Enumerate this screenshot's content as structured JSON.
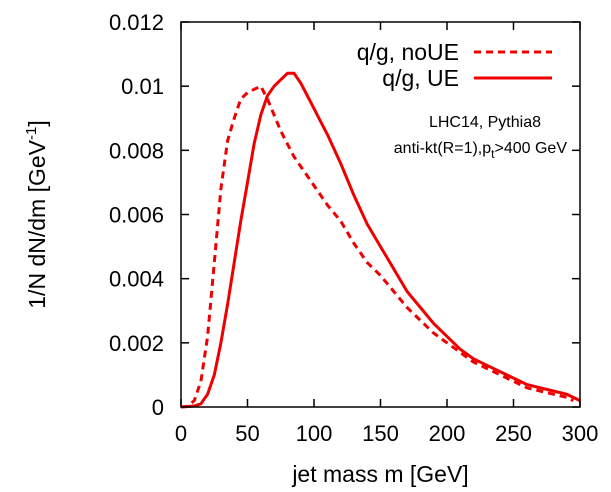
{
  "chart_data": {
    "type": "line",
    "xlabel": "jet mass m [GeV]",
    "ylabel": {
      "base": "1/N dN/dm [GeV",
      "superscript": "-1",
      "close": "]"
    },
    "xlim": [
      0,
      300
    ],
    "ylim": [
      0,
      0.012
    ],
    "xticks": [
      0,
      50,
      100,
      150,
      200,
      250,
      300
    ],
    "xtick_labels": [
      "0",
      "50",
      "100",
      "150",
      "200",
      "250",
      "300"
    ],
    "yticks": [
      0,
      0.002,
      0.004,
      0.006,
      0.008,
      0.01,
      0.012
    ],
    "ytick_labels": [
      "0",
      "0.002",
      "0.004",
      "0.006",
      "0.008",
      "0.01",
      "0.012"
    ],
    "grid": false,
    "legend_position": "top-right",
    "annotations": {
      "line1": "LHC14, Pythia8",
      "line2_prefix": "anti-kt(R=1),p",
      "line2_sub": "t",
      "line2_suffix": ">400 GeV"
    },
    "series": [
      {
        "name": "q/g, noUE",
        "color": "#ee0000",
        "style": "dashed",
        "x": [
          0,
          5,
          10,
          15,
          20,
          25,
          30,
          35,
          40,
          45,
          50,
          55,
          60,
          65,
          70,
          75,
          80,
          85,
          90,
          95,
          100,
          110,
          120,
          130,
          140,
          150,
          160,
          170,
          180,
          190,
          200,
          210,
          220,
          230,
          240,
          250,
          260,
          270,
          280,
          290,
          295
        ],
        "y": [
          0,
          2e-05,
          0.0002,
          0.0008,
          0.0022,
          0.0045,
          0.0068,
          0.0083,
          0.009,
          0.0096,
          0.0098,
          0.0099,
          0.01,
          0.0096,
          0.0091,
          0.0086,
          0.0082,
          0.0078,
          0.0075,
          0.0072,
          0.0069,
          0.0063,
          0.0058,
          0.0051,
          0.0045,
          0.0041,
          0.0036,
          0.0031,
          0.0027,
          0.0023,
          0.002,
          0.0017,
          0.0014,
          0.0012,
          0.001,
          0.0008,
          0.0006,
          0.0005,
          0.0004,
          0.0003,
          0.0002
        ]
      },
      {
        "name": "q/g, UE",
        "color": "#ee0000",
        "style": "solid",
        "x": [
          0,
          10,
          15,
          20,
          25,
          30,
          35,
          40,
          45,
          50,
          55,
          60,
          65,
          70,
          75,
          80,
          85,
          90,
          95,
          100,
          105,
          110,
          120,
          130,
          140,
          150,
          160,
          170,
          180,
          190,
          200,
          210,
          220,
          230,
          240,
          250,
          260,
          270,
          280,
          290,
          300
        ],
        "y": [
          0,
          3e-05,
          0.0001,
          0.0004,
          0.001,
          0.002,
          0.0032,
          0.0045,
          0.0058,
          0.007,
          0.0082,
          0.0091,
          0.0097,
          0.01,
          0.0102,
          0.0104,
          0.0104,
          0.0101,
          0.0097,
          0.0093,
          0.0089,
          0.0085,
          0.0076,
          0.0066,
          0.0057,
          0.005,
          0.0043,
          0.0036,
          0.0031,
          0.0026,
          0.0022,
          0.0018,
          0.0015,
          0.0013,
          0.0011,
          0.0009,
          0.0007,
          0.0006,
          0.0005,
          0.0004,
          0.0002
        ]
      }
    ]
  }
}
